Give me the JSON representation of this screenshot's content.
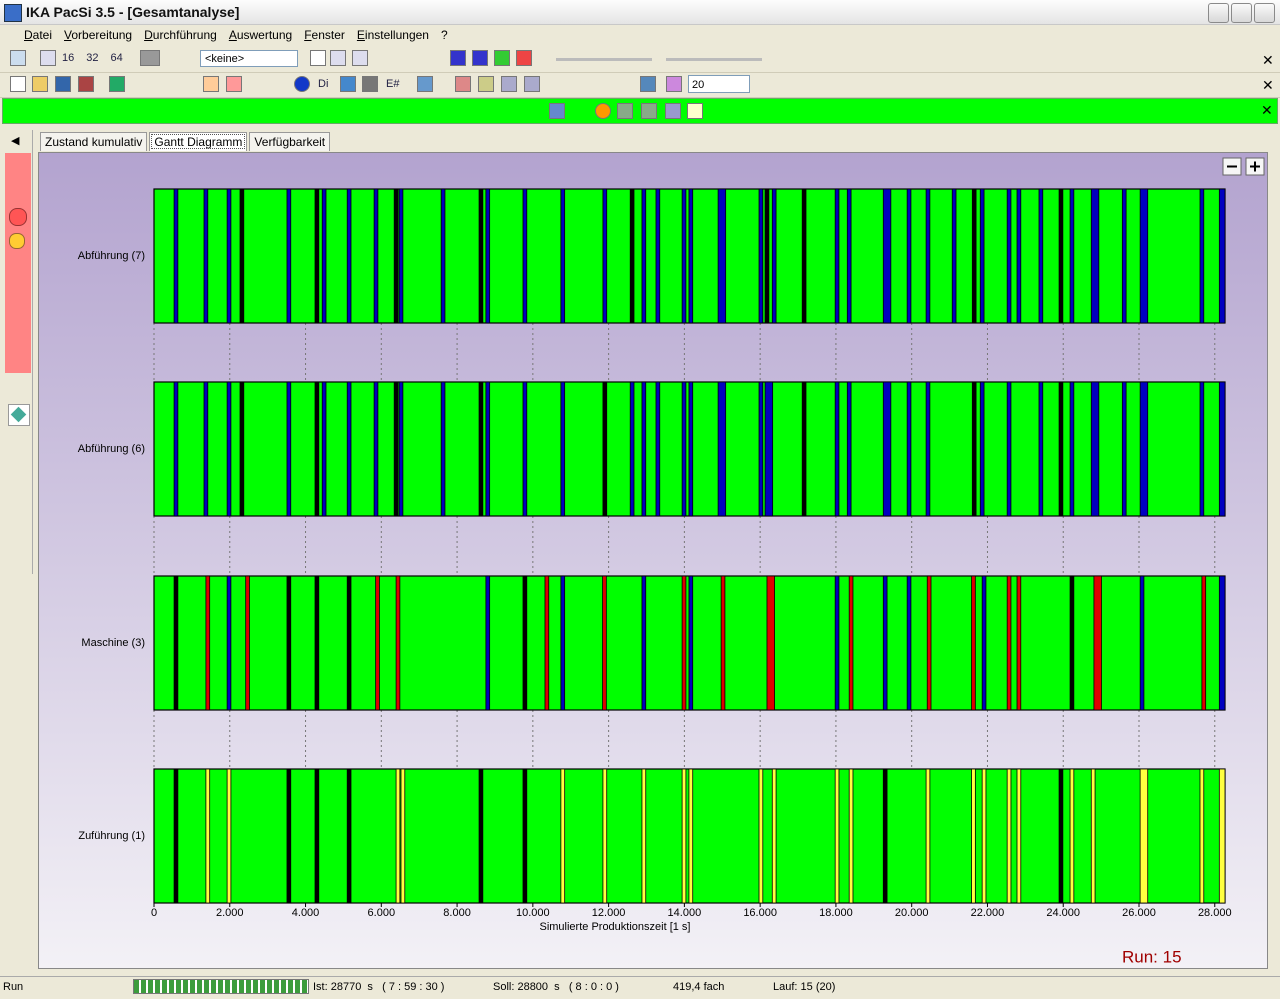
{
  "window": {
    "title": "IKA PacSi 3.5 - [Gesamtanalyse]"
  },
  "menu": [
    "Datei",
    "Vorbereitung",
    "Durchführung",
    "Auswertung",
    "Fenster",
    "Einstellungen",
    "?"
  ],
  "toolbar": {
    "zoom_buttons": [
      "16",
      "32",
      "64"
    ],
    "selection": "<keine>",
    "buttons": [
      "Di",
      "E#"
    ],
    "count": "20"
  },
  "tabs": [
    "Zustand kumulativ",
    "Gantt Diagramm",
    "Verfügbarkeit"
  ],
  "chart_data": {
    "type": "gantt",
    "xlabel": "Simulierte Produktionszeit [1 s]",
    "xlim": [
      0,
      28270
    ],
    "xticks": [
      0,
      {
        "value": 2000,
        "label": "2.000"
      },
      {
        "value": 4000,
        "label": "4.000"
      },
      {
        "value": 6000,
        "label": "6.000"
      },
      {
        "value": 8000,
        "label": "8.000"
      },
      {
        "value": 10000,
        "label": "10.000"
      },
      {
        "value": 12000,
        "label": "12.000"
      },
      {
        "value": 14000,
        "label": "14.000"
      },
      {
        "value": 16000,
        "label": "16.000"
      },
      {
        "value": 18000,
        "label": "18.000"
      },
      {
        "value": 20000,
        "label": "20.000"
      },
      {
        "value": 22000,
        "label": "22.000"
      },
      {
        "value": 24000,
        "label": "24.000"
      },
      {
        "value": 26000,
        "label": "26.000"
      },
      {
        "value": 28000,
        "label": "28.000"
      }
    ],
    "annotation": "Run: 15",
    "rows": [
      {
        "name": "Abführung (7)",
        "segments": [
          {
            "start": 0,
            "end": 28270,
            "color": "#00ff00"
          },
          {
            "start": 530,
            "end": 630,
            "color": "#0000c0"
          },
          {
            "start": 1320,
            "end": 1420,
            "color": "#0000c0"
          },
          {
            "start": 1930,
            "end": 2030,
            "color": "#0000c0"
          },
          {
            "start": 2270,
            "end": 2370,
            "color": "#000000"
          },
          {
            "start": 3510,
            "end": 3610,
            "color": "#0000c0"
          },
          {
            "start": 4250,
            "end": 4350,
            "color": "#000000"
          },
          {
            "start": 4440,
            "end": 4540,
            "color": "#0000c0"
          },
          {
            "start": 5100,
            "end": 5200,
            "color": "#0000c0"
          },
          {
            "start": 5810,
            "end": 5910,
            "color": "#0000c0"
          },
          {
            "start": 6340,
            "end": 6440,
            "color": "#000000"
          },
          {
            "start": 6470,
            "end": 6570,
            "color": "#0000c0"
          },
          {
            "start": 7580,
            "end": 7680,
            "color": "#0000c0"
          },
          {
            "start": 8580,
            "end": 8680,
            "color": "#000000"
          },
          {
            "start": 8760,
            "end": 8860,
            "color": "#0000c0"
          },
          {
            "start": 9740,
            "end": 9840,
            "color": "#0000c0"
          },
          {
            "start": 10740,
            "end": 10840,
            "color": "#0000c0"
          },
          {
            "start": 11850,
            "end": 11950,
            "color": "#0000c0"
          },
          {
            "start": 12570,
            "end": 12670,
            "color": "#000000"
          },
          {
            "start": 12880,
            "end": 12980,
            "color": "#0000c0"
          },
          {
            "start": 13250,
            "end": 13350,
            "color": "#0000c0"
          },
          {
            "start": 13940,
            "end": 14040,
            "color": "#0000c0"
          },
          {
            "start": 14120,
            "end": 14220,
            "color": "#0000c0"
          },
          {
            "start": 14890,
            "end": 15090,
            "color": "#0000c0"
          },
          {
            "start": 15970,
            "end": 16070,
            "color": "#0000c0"
          },
          {
            "start": 16130,
            "end": 16230,
            "color": "#000000"
          },
          {
            "start": 16320,
            "end": 16420,
            "color": "#0000c0"
          },
          {
            "start": 17110,
            "end": 17210,
            "color": "#000000"
          },
          {
            "start": 17980,
            "end": 18080,
            "color": "#0000c0"
          },
          {
            "start": 18300,
            "end": 18400,
            "color": "#0000c0"
          },
          {
            "start": 19250,
            "end": 19450,
            "color": "#0000c0"
          },
          {
            "start": 19880,
            "end": 19980,
            "color": "#0000c0"
          },
          {
            "start": 20380,
            "end": 20480,
            "color": "#0000c0"
          },
          {
            "start": 21070,
            "end": 21170,
            "color": "#0000c0"
          },
          {
            "start": 21600,
            "end": 21700,
            "color": "#000000"
          },
          {
            "start": 21810,
            "end": 21910,
            "color": "#0000c0"
          },
          {
            "start": 22520,
            "end": 22620,
            "color": "#0000c0"
          },
          {
            "start": 22780,
            "end": 22880,
            "color": "#0000c0"
          },
          {
            "start": 23360,
            "end": 23460,
            "color": "#0000c0"
          },
          {
            "start": 23890,
            "end": 23990,
            "color": "#000000"
          },
          {
            "start": 24180,
            "end": 24280,
            "color": "#0000c0"
          },
          {
            "start": 24740,
            "end": 24940,
            "color": "#0000c0"
          },
          {
            "start": 25560,
            "end": 25660,
            "color": "#0000c0"
          },
          {
            "start": 26030,
            "end": 26230,
            "color": "#0000c0"
          },
          {
            "start": 27610,
            "end": 27710,
            "color": "#0000c0"
          },
          {
            "start": 28120,
            "end": 28270,
            "color": "#0000c0"
          }
        ]
      },
      {
        "name": "Abführung (6)",
        "segments": [
          {
            "start": 0,
            "end": 28270,
            "color": "#00ff00"
          },
          {
            "start": 530,
            "end": 630,
            "color": "#0000c0"
          },
          {
            "start": 1320,
            "end": 1420,
            "color": "#0000c0"
          },
          {
            "start": 1930,
            "end": 2030,
            "color": "#0000c0"
          },
          {
            "start": 2270,
            "end": 2370,
            "color": "#000000"
          },
          {
            "start": 3510,
            "end": 3610,
            "color": "#0000c0"
          },
          {
            "start": 4250,
            "end": 4350,
            "color": "#000000"
          },
          {
            "start": 4440,
            "end": 4540,
            "color": "#0000c0"
          },
          {
            "start": 5100,
            "end": 5200,
            "color": "#0000c0"
          },
          {
            "start": 5810,
            "end": 5910,
            "color": "#0000c0"
          },
          {
            "start": 6340,
            "end": 6440,
            "color": "#000000"
          },
          {
            "start": 6470,
            "end": 6570,
            "color": "#0000c0"
          },
          {
            "start": 7580,
            "end": 7680,
            "color": "#0000c0"
          },
          {
            "start": 8580,
            "end": 8680,
            "color": "#000000"
          },
          {
            "start": 8760,
            "end": 8860,
            "color": "#0000c0"
          },
          {
            "start": 9740,
            "end": 9840,
            "color": "#0000c0"
          },
          {
            "start": 10740,
            "end": 10840,
            "color": "#0000c0"
          },
          {
            "start": 11850,
            "end": 11950,
            "color": "#000000"
          },
          {
            "start": 12570,
            "end": 12670,
            "color": "#0000c0"
          },
          {
            "start": 12880,
            "end": 12980,
            "color": "#0000c0"
          },
          {
            "start": 13250,
            "end": 13350,
            "color": "#0000c0"
          },
          {
            "start": 13940,
            "end": 14040,
            "color": "#0000c0"
          },
          {
            "start": 14120,
            "end": 14220,
            "color": "#0000c0"
          },
          {
            "start": 14890,
            "end": 15090,
            "color": "#0000c0"
          },
          {
            "start": 15970,
            "end": 16070,
            "color": "#0000c0"
          },
          {
            "start": 16130,
            "end": 16330,
            "color": "#0000c0"
          },
          {
            "start": 17110,
            "end": 17210,
            "color": "#000000"
          },
          {
            "start": 17980,
            "end": 18080,
            "color": "#0000c0"
          },
          {
            "start": 18300,
            "end": 18400,
            "color": "#0000c0"
          },
          {
            "start": 19250,
            "end": 19450,
            "color": "#0000c0"
          },
          {
            "start": 19880,
            "end": 19980,
            "color": "#0000c0"
          },
          {
            "start": 20380,
            "end": 20480,
            "color": "#0000c0"
          },
          {
            "start": 21600,
            "end": 21700,
            "color": "#000000"
          },
          {
            "start": 21810,
            "end": 21910,
            "color": "#0000c0"
          },
          {
            "start": 22520,
            "end": 22620,
            "color": "#0000c0"
          },
          {
            "start": 23360,
            "end": 23460,
            "color": "#0000c0"
          },
          {
            "start": 23890,
            "end": 23990,
            "color": "#000000"
          },
          {
            "start": 24180,
            "end": 24280,
            "color": "#0000c0"
          },
          {
            "start": 24740,
            "end": 24940,
            "color": "#0000c0"
          },
          {
            "start": 25560,
            "end": 25660,
            "color": "#0000c0"
          },
          {
            "start": 26030,
            "end": 26230,
            "color": "#0000c0"
          },
          {
            "start": 27610,
            "end": 27710,
            "color": "#0000c0"
          },
          {
            "start": 28120,
            "end": 28270,
            "color": "#0000c0"
          }
        ]
      },
      {
        "name": "Maschine (3)",
        "segments": [
          {
            "start": 0,
            "end": 28270,
            "color": "#00ff00"
          },
          {
            "start": 530,
            "end": 630,
            "color": "#000000"
          },
          {
            "start": 1370,
            "end": 1470,
            "color": "#e00000"
          },
          {
            "start": 1930,
            "end": 2030,
            "color": "#0000c0"
          },
          {
            "start": 2420,
            "end": 2520,
            "color": "#e00000"
          },
          {
            "start": 3510,
            "end": 3610,
            "color": "#000000"
          },
          {
            "start": 4250,
            "end": 4350,
            "color": "#000000"
          },
          {
            "start": 5100,
            "end": 5200,
            "color": "#000000"
          },
          {
            "start": 5850,
            "end": 5950,
            "color": "#e00000"
          },
          {
            "start": 6390,
            "end": 6490,
            "color": "#e00000"
          },
          {
            "start": 8760,
            "end": 8860,
            "color": "#0000c0"
          },
          {
            "start": 9740,
            "end": 9840,
            "color": "#000000"
          },
          {
            "start": 10320,
            "end": 10420,
            "color": "#e00000"
          },
          {
            "start": 10740,
            "end": 10840,
            "color": "#0000c0"
          },
          {
            "start": 11840,
            "end": 11940,
            "color": "#e00000"
          },
          {
            "start": 12880,
            "end": 12980,
            "color": "#0000c0"
          },
          {
            "start": 13940,
            "end": 14040,
            "color": "#e00000"
          },
          {
            "start": 14120,
            "end": 14220,
            "color": "#0000c0"
          },
          {
            "start": 14970,
            "end": 15070,
            "color": "#e00000"
          },
          {
            "start": 16180,
            "end": 16380,
            "color": "#e00000"
          },
          {
            "start": 17980,
            "end": 18080,
            "color": "#0000c0"
          },
          {
            "start": 18350,
            "end": 18450,
            "color": "#e00000"
          },
          {
            "start": 19250,
            "end": 19350,
            "color": "#0000c0"
          },
          {
            "start": 19880,
            "end": 19980,
            "color": "#0000c0"
          },
          {
            "start": 20410,
            "end": 20510,
            "color": "#e00000"
          },
          {
            "start": 21580,
            "end": 21680,
            "color": "#e00000"
          },
          {
            "start": 21860,
            "end": 21960,
            "color": "#0000c0"
          },
          {
            "start": 22520,
            "end": 22620,
            "color": "#e00000"
          },
          {
            "start": 22780,
            "end": 22880,
            "color": "#e00000"
          },
          {
            "start": 24180,
            "end": 24280,
            "color": "#000000"
          },
          {
            "start": 24810,
            "end": 25010,
            "color": "#e00000"
          },
          {
            "start": 26030,
            "end": 26130,
            "color": "#0000c0"
          },
          {
            "start": 27660,
            "end": 27760,
            "color": "#e00000"
          },
          {
            "start": 28120,
            "end": 28270,
            "color": "#0000c0"
          }
        ]
      },
      {
        "name": "Zuführung (1)",
        "segments": [
          {
            "start": 0,
            "end": 28270,
            "color": "#00ff00"
          },
          {
            "start": 530,
            "end": 630,
            "color": "#000000"
          },
          {
            "start": 1370,
            "end": 1470,
            "color": "#ffff40"
          },
          {
            "start": 1930,
            "end": 2030,
            "color": "#ffff40"
          },
          {
            "start": 3510,
            "end": 3610,
            "color": "#000000"
          },
          {
            "start": 4250,
            "end": 4350,
            "color": "#000000"
          },
          {
            "start": 5100,
            "end": 5200,
            "color": "#000000"
          },
          {
            "start": 6390,
            "end": 6490,
            "color": "#ffff40"
          },
          {
            "start": 6520,
            "end": 6620,
            "color": "#ffff40"
          },
          {
            "start": 8580,
            "end": 8680,
            "color": "#000000"
          },
          {
            "start": 9740,
            "end": 9840,
            "color": "#000000"
          },
          {
            "start": 10740,
            "end": 10840,
            "color": "#ffff40"
          },
          {
            "start": 11850,
            "end": 11950,
            "color": "#ffff40"
          },
          {
            "start": 12880,
            "end": 12980,
            "color": "#ffff40"
          },
          {
            "start": 13940,
            "end": 14040,
            "color": "#ffff40"
          },
          {
            "start": 14120,
            "end": 14220,
            "color": "#ffff40"
          },
          {
            "start": 15970,
            "end": 16070,
            "color": "#ffff40"
          },
          {
            "start": 16320,
            "end": 16420,
            "color": "#ffff40"
          },
          {
            "start": 17980,
            "end": 18080,
            "color": "#ffff40"
          },
          {
            "start": 18350,
            "end": 18450,
            "color": "#ffff40"
          },
          {
            "start": 19250,
            "end": 19350,
            "color": "#000000"
          },
          {
            "start": 20380,
            "end": 20480,
            "color": "#ffff40"
          },
          {
            "start": 21580,
            "end": 21680,
            "color": "#ffff40"
          },
          {
            "start": 21860,
            "end": 21960,
            "color": "#ffff40"
          },
          {
            "start": 22520,
            "end": 22620,
            "color": "#ffff40"
          },
          {
            "start": 22780,
            "end": 22880,
            "color": "#ffff40"
          },
          {
            "start": 23890,
            "end": 23990,
            "color": "#000000"
          },
          {
            "start": 24180,
            "end": 24280,
            "color": "#ffff40"
          },
          {
            "start": 24740,
            "end": 24840,
            "color": "#ffff40"
          },
          {
            "start": 26030,
            "end": 26230,
            "color": "#ffff40"
          },
          {
            "start": 27610,
            "end": 27710,
            "color": "#ffff40"
          },
          {
            "start": 28120,
            "end": 28270,
            "color": "#ffff40"
          }
        ]
      }
    ]
  },
  "status_bar": {
    "mode": "Run",
    "ist": "Ist: 28770  s   ( 7 : 59 : 30 )",
    "soll": "Soll: 28800  s   ( 8 : 0 : 0 )",
    "speed": "419,4 fach",
    "lauf": "Lauf: 15 (20)"
  }
}
